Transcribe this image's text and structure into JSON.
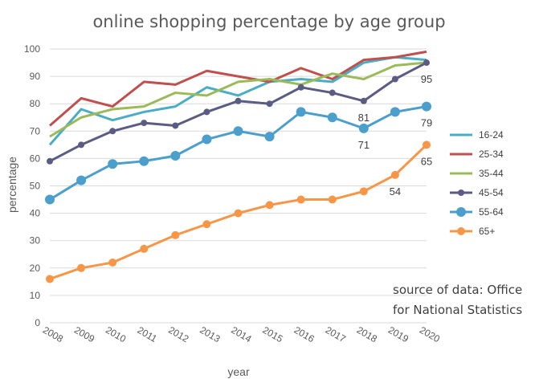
{
  "chart_data": {
    "type": "line",
    "title": "online shopping percentage by age group",
    "xlabel": "year",
    "ylabel": "percentage",
    "ylim": [
      0,
      100
    ],
    "yticks": [
      0,
      10,
      20,
      30,
      40,
      50,
      60,
      70,
      80,
      90,
      100
    ],
    "grid": true,
    "legend": "right",
    "x": [
      "2008",
      "2009",
      "2010",
      "2011",
      "2012",
      "2013",
      "2014",
      "2015",
      "2016",
      "2017",
      "2018",
      "2019",
      "2020"
    ],
    "series": [
      {
        "name": "16-24",
        "color": "#4BACC6",
        "marker": "none",
        "values": [
          65,
          78,
          74,
          77,
          79,
          86,
          83,
          88,
          89,
          88,
          95,
          97,
          96
        ]
      },
      {
        "name": "25-34",
        "color": "#C0504D",
        "marker": "none",
        "values": [
          72,
          82,
          79,
          88,
          87,
          92,
          90,
          88,
          93,
          89,
          96,
          97,
          99
        ]
      },
      {
        "name": "35-44",
        "color": "#9BBB59",
        "marker": "none",
        "values": [
          68,
          75,
          78,
          79,
          84,
          83,
          88,
          89,
          87,
          91,
          89,
          94,
          95
        ]
      },
      {
        "name": "45-54",
        "color": "#5B5C83",
        "marker": "small",
        "values": [
          59,
          65,
          70,
          73,
          72,
          77,
          81,
          80,
          86,
          84,
          81,
          89,
          95
        ]
      },
      {
        "name": "55-64",
        "color": "#4A9FCC",
        "marker": "large",
        "values": [
          45,
          52,
          58,
          59,
          61,
          67,
          70,
          68,
          77,
          75,
          71,
          77,
          79
        ]
      },
      {
        "name": "65+",
        "color": "#F79646",
        "marker": "medium",
        "values": [
          16,
          20,
          22,
          27,
          32,
          36,
          40,
          43,
          45,
          45,
          48,
          54,
          65
        ]
      }
    ],
    "data_labels": [
      {
        "series": "45-54",
        "x": "2018",
        "value": "81"
      },
      {
        "series": "45-54",
        "x": "2020",
        "value": "95"
      },
      {
        "series": "55-64",
        "x": "2018",
        "value": "71"
      },
      {
        "series": "55-64",
        "x": "2020",
        "value": "79"
      },
      {
        "series": "65+",
        "x": "2019",
        "value": "54"
      },
      {
        "series": "65+",
        "x": "2020",
        "value": "65"
      }
    ],
    "annotation": [
      "source of data: Office",
      "for National Statistics"
    ]
  }
}
